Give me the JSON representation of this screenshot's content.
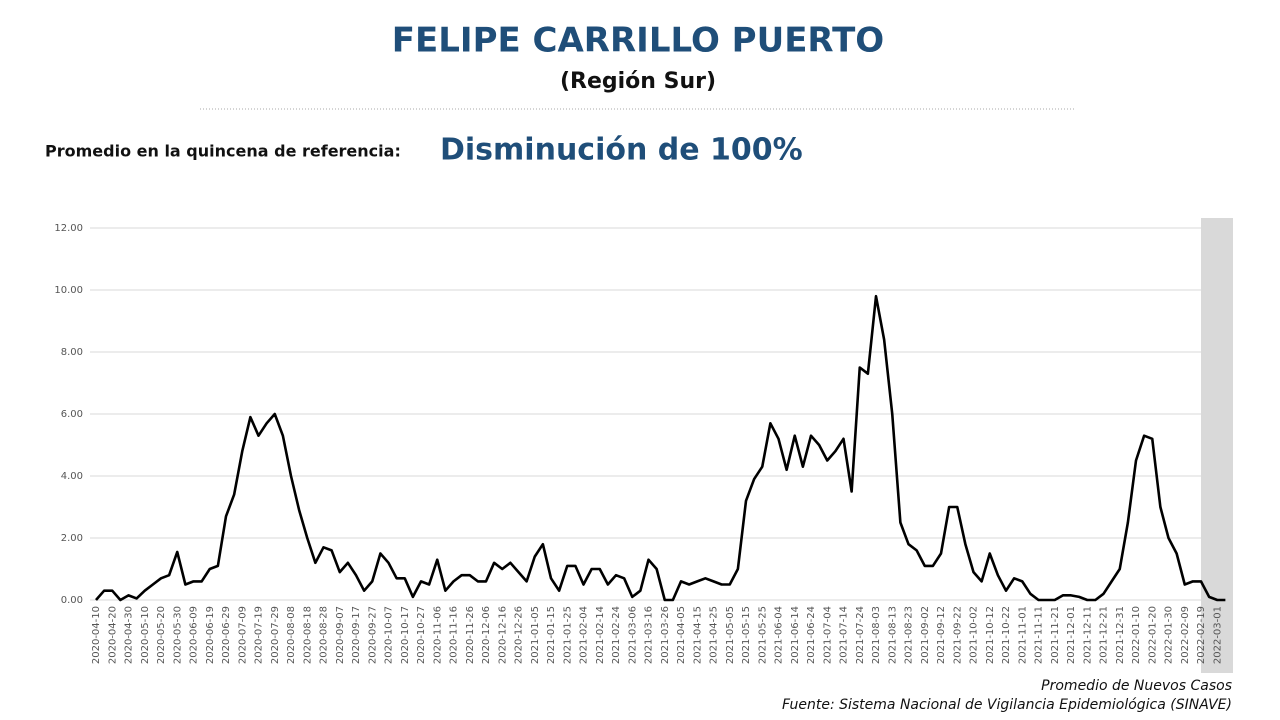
{
  "header": {
    "title": "FELIPE CARRILLO PUERTO",
    "subtitle": "(Región Sur)",
    "reference_label": "Promedio en la quincena de referencia:",
    "reference_value": "Disminución de 100%"
  },
  "chart_data": {
    "type": "line",
    "color": "#000000",
    "grid": true,
    "categories": [
      "2020-04-10",
      null,
      "2020-04-20",
      null,
      "2020-04-30",
      null,
      "2020-05-10",
      null,
      "2020-05-20",
      null,
      "2020-05-30",
      null,
      "2020-06-09",
      null,
      "2020-06-19",
      null,
      "2020-06-29",
      null,
      "2020-07-09",
      null,
      "2020-07-19",
      null,
      "2020-07-29",
      null,
      "2020-08-08",
      null,
      "2020-08-18",
      null,
      "2020-08-28",
      null,
      "2020-09-07",
      null,
      "2020-09-17",
      null,
      "2020-09-27",
      null,
      "2020-10-07",
      null,
      "2020-10-17",
      null,
      "2020-10-27",
      null,
      "2020-11-06",
      null,
      "2020-11-16",
      null,
      "2020-11-26",
      null,
      "2020-12-06",
      null,
      "2020-12-16",
      null,
      "2020-12-26",
      null,
      "2021-01-05",
      null,
      "2021-01-15",
      null,
      "2021-01-25",
      null,
      "2021-02-04",
      null,
      "2021-02-14",
      null,
      "2021-02-24",
      null,
      "2021-03-06",
      null,
      "2021-03-16",
      null,
      "2021-03-26",
      null,
      "2021-04-05",
      null,
      "2021-04-15",
      null,
      "2021-04-25",
      null,
      "2021-05-05",
      null,
      "2021-05-15",
      null,
      "2021-05-25",
      null,
      "2021-06-04",
      null,
      "2021-06-14",
      null,
      "2021-06-24",
      null,
      "2021-07-04",
      null,
      "2021-07-14",
      null,
      "2021-07-24",
      null,
      "2021-08-03",
      null,
      "2021-08-13",
      null,
      "2021-08-23",
      null,
      "2021-09-02",
      null,
      "2021-09-12",
      null,
      "2021-09-22",
      null,
      "2021-10-02",
      null,
      "2021-10-12",
      null,
      "2021-10-22",
      null,
      "2021-11-01",
      null,
      "2021-11-11",
      null,
      "2021-11-21",
      null,
      "2021-12-01",
      null,
      "2021-12-11",
      null,
      "2021-12-21",
      null,
      "2021-12-31",
      null,
      "2022-01-10",
      null,
      "2022-01-20",
      null,
      "2022-01-30",
      null,
      "2022-02-09",
      null,
      "2022-02-19",
      null,
      "2022-03-01",
      null
    ],
    "values": [
      0,
      0.3,
      0.3,
      0,
      0.15,
      0.05,
      0.3,
      0.5,
      0.7,
      0.8,
      1.55,
      0.5,
      0.6,
      0.6,
      1.0,
      1.1,
      2.7,
      3.4,
      4.8,
      5.9,
      5.3,
      5.7,
      6.0,
      5.3,
      4.0,
      2.9,
      2.0,
      1.2,
      1.7,
      1.6,
      0.9,
      1.2,
      0.8,
      0.3,
      0.6,
      1.5,
      1.2,
      0.7,
      0.7,
      0.1,
      0.6,
      0.5,
      1.3,
      0.3,
      0.6,
      0.8,
      0.8,
      0.6,
      0.6,
      1.2,
      1.0,
      1.2,
      0.9,
      0.6,
      1.4,
      1.8,
      0.7,
      0.3,
      1.1,
      1.1,
      0.5,
      1.0,
      1.0,
      0.5,
      0.8,
      0.7,
      0.1,
      0.3,
      1.3,
      1.0,
      0,
      0,
      0.6,
      0.5,
      0.6,
      0.7,
      0.6,
      0.5,
      0.5,
      1.0,
      3.2,
      3.9,
      4.3,
      5.7,
      5.2,
      4.2,
      5.3,
      4.3,
      5.3,
      5.0,
      4.5,
      4.8,
      5.2,
      3.5,
      7.5,
      7.3,
      9.8,
      8.4,
      6.0,
      2.5,
      1.8,
      1.6,
      1.1,
      1.1,
      1.5,
      3.0,
      3.0,
      1.8,
      0.9,
      0.6,
      1.5,
      0.8,
      0.3,
      0.7,
      0.6,
      0.2,
      0,
      0,
      0,
      0.15,
      0.15,
      0.1,
      0,
      0,
      0.2,
      0.6,
      1.0,
      2.5,
      4.5,
      5.3,
      5.2,
      3.0,
      2.0,
      1.5,
      0.5,
      0.6,
      0.6,
      0.1,
      0,
      0
    ],
    "ylim": [
      0,
      12
    ],
    "yticks": [
      {
        "value": 0,
        "label": "0.00"
      },
      {
        "value": 2,
        "label": "2.00"
      },
      {
        "value": 4,
        "label": "4.00"
      },
      {
        "value": 6,
        "label": "6.00"
      },
      {
        "value": 8,
        "label": "8.00"
      },
      {
        "value": 10,
        "label": "10.00"
      },
      {
        "value": 12,
        "label": "12.00"
      }
    ]
  },
  "footer": {
    "legend": "Promedio de Nuevos Casos",
    "source": "Fuente: Sistema Nacional de Vigilancia Epidemiológica (SINAVE)"
  }
}
